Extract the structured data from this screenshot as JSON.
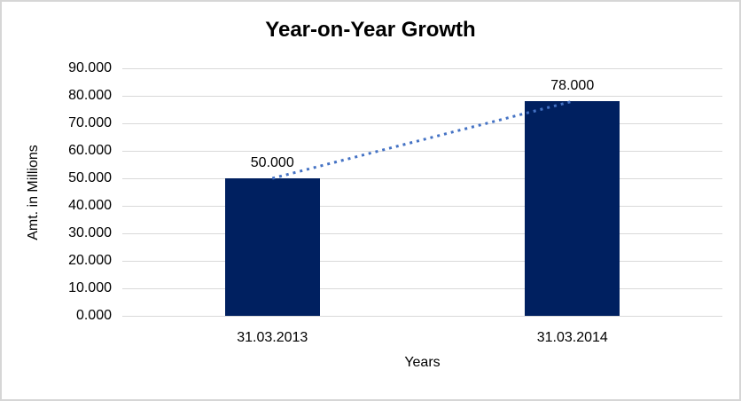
{
  "window": {
    "background": "#FFFFFF",
    "border_color": "#D6D6D6"
  },
  "chart_data": {
    "type": "bar",
    "title": "Year-on-Year Growth",
    "xlabel": "Years",
    "ylabel": "Amt. in Millions",
    "categories": [
      "31.03.2013",
      "31.03.2014"
    ],
    "values": [
      50,
      78
    ],
    "data_labels": [
      "50.000",
      "78.000"
    ],
    "ylim": [
      0,
      90
    ],
    "ytick_step": 10,
    "yticks": [
      {
        "v": 0,
        "label": "0.000"
      },
      {
        "v": 10,
        "label": "10.000"
      },
      {
        "v": 20,
        "label": "20.000"
      },
      {
        "v": 30,
        "label": "30.000"
      },
      {
        "v": 40,
        "label": "40.000"
      },
      {
        "v": 50,
        "label": "50.000"
      },
      {
        "v": 60,
        "label": "60.000"
      },
      {
        "v": 70,
        "label": "70.000"
      },
      {
        "v": 80,
        "label": "80.000"
      },
      {
        "v": 90,
        "label": "90.000"
      }
    ],
    "grid": true,
    "legend": "none",
    "bar_color": "#002060",
    "gridline_color": "#D9D9D9",
    "trend_line": {
      "style": "dotted",
      "color": "#4472C4",
      "connects": "bar tops",
      "points": [
        [
          307,
          50
        ],
        [
          646,
          78
        ]
      ]
    }
  }
}
